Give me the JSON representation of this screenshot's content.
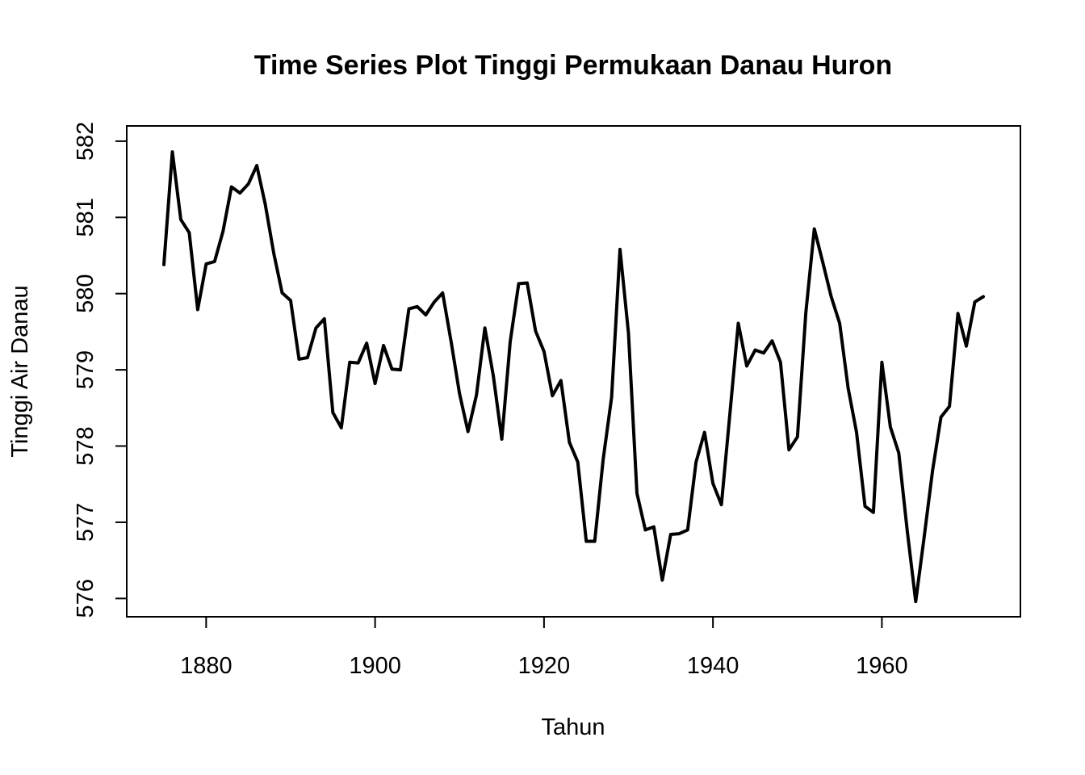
{
  "chart_data": {
    "type": "line",
    "title": "Time Series Plot Tinggi Permukaan Danau Huron",
    "xlabel": "Tahun",
    "ylabel": "Tinggi Air Danau",
    "xlim": [
      1870.6,
      1976.4
    ],
    "ylim": [
      575.76,
      582.2
    ],
    "x_ticks": [
      1880,
      1900,
      1920,
      1940,
      1960
    ],
    "y_ticks": [
      576,
      577,
      578,
      579,
      580,
      581,
      582
    ],
    "grid": false,
    "legend": "none",
    "color": "#000000",
    "series": [
      {
        "x": [
          1875,
          1876,
          1877,
          1878,
          1879,
          1880,
          1881,
          1882,
          1883,
          1884,
          1885,
          1886,
          1887,
          1888,
          1889,
          1890,
          1891,
          1892,
          1893,
          1894,
          1895,
          1896,
          1897,
          1898,
          1899,
          1900,
          1901,
          1902,
          1903,
          1904,
          1905,
          1906,
          1907,
          1908,
          1909,
          1910,
          1911,
          1912,
          1913,
          1914,
          1915,
          1916,
          1917,
          1918,
          1919,
          1920,
          1921,
          1922,
          1923,
          1924,
          1925,
          1926,
          1927,
          1928,
          1929,
          1930,
          1931,
          1932,
          1933,
          1934,
          1935,
          1936,
          1937,
          1938,
          1939,
          1940,
          1941,
          1942,
          1943,
          1944,
          1945,
          1946,
          1947,
          1948,
          1949,
          1950,
          1951,
          1952,
          1953,
          1954,
          1955,
          1956,
          1957,
          1958,
          1959,
          1960,
          1961,
          1962,
          1963,
          1964,
          1965,
          1966,
          1967,
          1968,
          1969,
          1970,
          1971,
          1972
        ],
        "values": [
          580.38,
          581.86,
          580.97,
          580.8,
          579.79,
          580.39,
          580.42,
          580.82,
          581.4,
          581.32,
          581.44,
          581.68,
          581.17,
          580.53,
          580.01,
          579.91,
          579.14,
          579.16,
          579.55,
          579.67,
          578.44,
          578.24,
          579.1,
          579.09,
          579.35,
          578.82,
          579.32,
          579.01,
          579.0,
          579.8,
          579.83,
          579.72,
          579.89,
          580.01,
          579.37,
          578.69,
          578.19,
          578.67,
          579.55,
          578.92,
          578.09,
          579.37,
          580.13,
          580.14,
          579.51,
          579.24,
          578.66,
          578.86,
          578.05,
          577.79,
          576.75,
          576.75,
          577.82,
          578.64,
          580.58,
          579.48,
          577.38,
          576.9,
          576.94,
          576.24,
          576.84,
          576.85,
          576.9,
          577.79,
          578.18,
          577.51,
          577.23,
          578.42,
          579.61,
          579.05,
          579.26,
          579.22,
          579.38,
          579.1,
          577.95,
          578.12,
          579.75,
          580.85,
          580.41,
          579.96,
          579.61,
          578.76,
          578.18,
          577.21,
          577.13,
          579.1,
          578.25,
          577.91,
          576.89,
          575.96,
          576.8,
          577.68,
          578.38,
          578.52,
          579.74,
          579.31,
          579.89,
          579.96
        ]
      }
    ]
  }
}
